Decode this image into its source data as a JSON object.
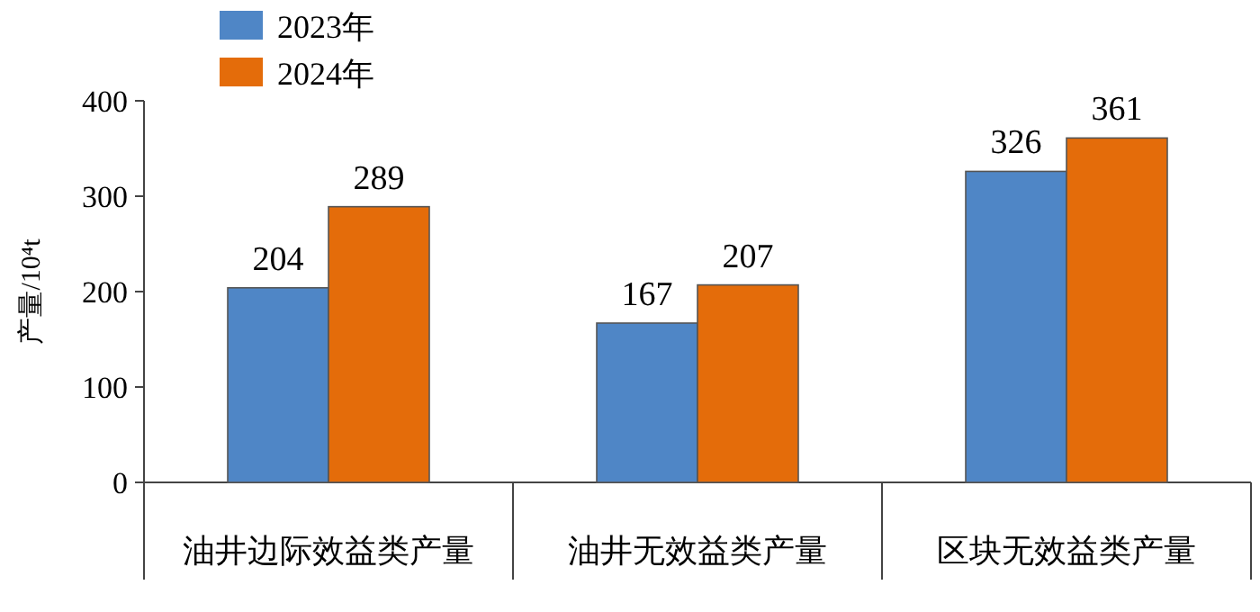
{
  "chart_data": {
    "type": "bar",
    "ylabel": "产量/10⁴t",
    "categories": [
      "油井边际效益类产量",
      "油井无效益类产量",
      "区块无效益类产量"
    ],
    "series": [
      {
        "name": "2023年",
        "color": "#4f86c6",
        "values": [
          204,
          167,
          326
        ]
      },
      {
        "name": "2024年",
        "color": "#e46c0a",
        "values": [
          289,
          207,
          361
        ]
      }
    ],
    "ylim": [
      0,
      400
    ],
    "yticks": [
      0,
      100,
      200,
      300,
      400
    ],
    "data_labels": true,
    "legend": "top left",
    "grid": false
  }
}
